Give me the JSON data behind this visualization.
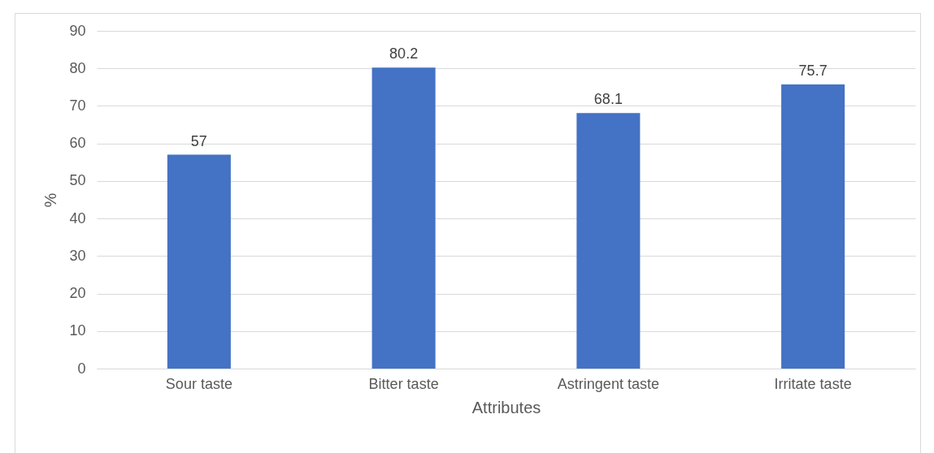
{
  "chart_data": {
    "type": "bar",
    "xlabel": "Attributes",
    "ylabel": "%",
    "categories": [
      "Sour taste",
      "Bitter taste",
      "Astringent taste",
      "Irritate taste"
    ],
    "values": [
      57,
      80.2,
      68.1,
      75.7
    ],
    "color": "#4472c4",
    "ylim": [
      0,
      90
    ],
    "yticks": [
      0,
      10,
      20,
      30,
      40,
      50,
      60,
      70,
      80,
      90
    ],
    "grid": "y",
    "data_labels": true
  }
}
